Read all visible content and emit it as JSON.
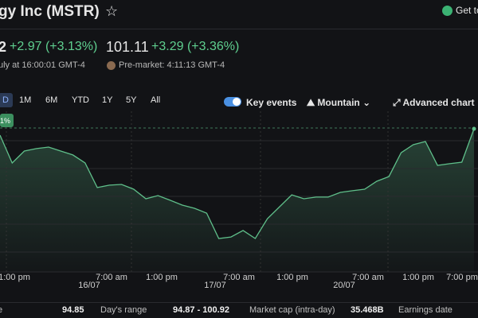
{
  "header": {
    "title": "gy Inc (MSTR)",
    "button": "Get to"
  },
  "quote": {
    "price": "2",
    "change": "+2.97",
    "change_pct": "(+3.13%)",
    "time": "uly at 16:00:01 GMT-4",
    "premarket_price": "101.11",
    "premarket_change": "+3.29",
    "premarket_change_pct": "(+3.36%)",
    "premarket_time": "Pre-market: 4:11:13 GMT-4"
  },
  "toolbar": {
    "ranges": [
      "D",
      "1M",
      "6M",
      "YTD",
      "1Y",
      "5Y",
      "All"
    ],
    "key_events": "Key events",
    "chart_type": "Mountain",
    "advanced": "Advanced chart"
  },
  "chart_data": {
    "type": "area",
    "badge": "1%",
    "color": "#5fbf8a",
    "time_labels": [
      "1:00 pm",
      "16/07",
      "7:00 am",
      "1:00 pm",
      "17/07",
      "7:00 am",
      "1:00 pm",
      "20/07",
      "7:00 am",
      "1:00 pm",
      "7:00 pm"
    ],
    "values": [
      100.42,
      98.58,
      99.37,
      99.53,
      99.63,
      99.37,
      99.11,
      98.58,
      96.95,
      97.11,
      97.16,
      96.84,
      96.21,
      96.42,
      96.11,
      95.79,
      95.58,
      95.26,
      93.58,
      93.68,
      94.11,
      93.58,
      94.89,
      95.68,
      96.47,
      96.21,
      96.32,
      96.32,
      96.63,
      96.74,
      96.84,
      97.37,
      97.68,
      99.26,
      99.79,
      100.0,
      98.42,
      98.53,
      98.63,
      100.84
    ],
    "ylim": [
      92,
      102
    ]
  },
  "stats": [
    "e",
    "94.85",
    "Day's range",
    "94.87 - 100.92",
    "Market cap (intra-day)",
    "35.468B",
    "Earnings date"
  ]
}
